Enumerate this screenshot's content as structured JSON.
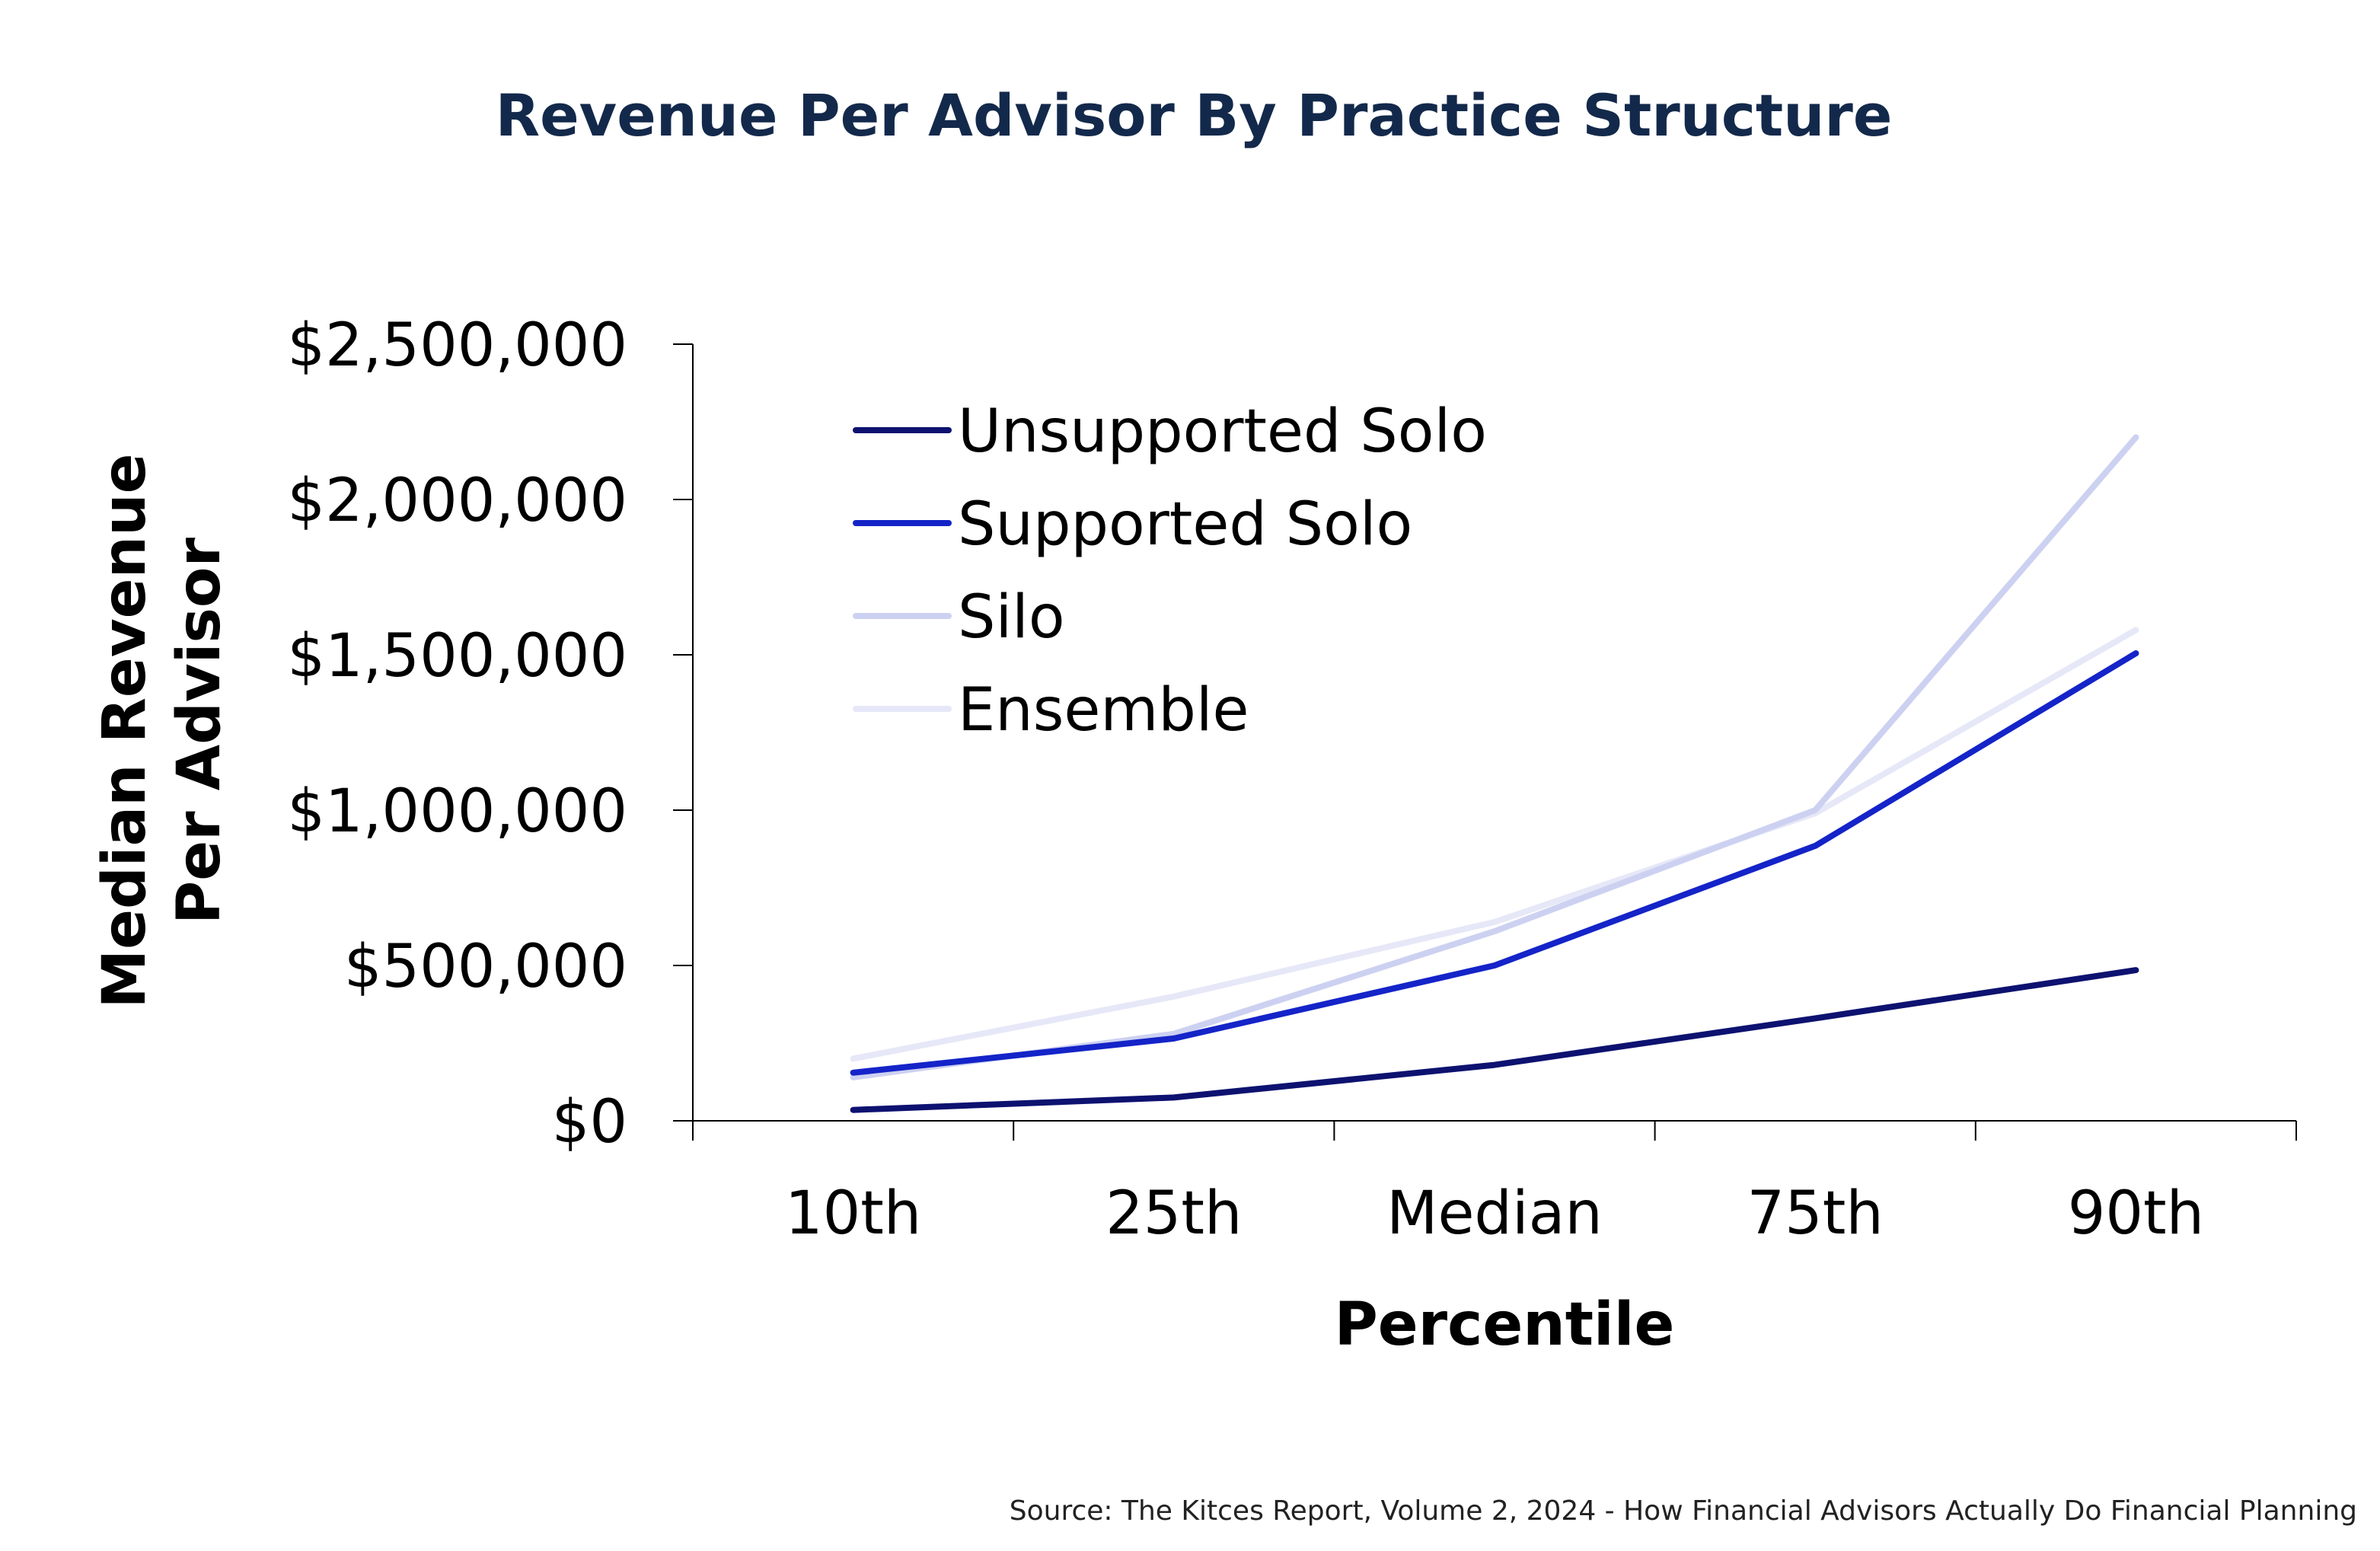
{
  "chart_data": {
    "type": "line",
    "title": "Revenue Per Advisor By Practice Structure",
    "xlabel": "Percentile",
    "ylabel": "Median Revenue Per Advisor",
    "ylabel_lines": [
      "Median Revenue",
      "Per Advisor"
    ],
    "categories": [
      "10th",
      "25th",
      "Median",
      "75th",
      "90th"
    ],
    "ylim": [
      0,
      2500000
    ],
    "yticks": [
      0,
      500000,
      1000000,
      1500000,
      2000000,
      2500000
    ],
    "ytick_labels": [
      "$0",
      "$500,000",
      "$1,000,000",
      "$1,500,000",
      "$2,000,000",
      "$2,500,000"
    ],
    "grid": false,
    "legend_position": "top-left",
    "series": [
      {
        "name": "Unsupported Solo",
        "color": "#0d1270",
        "values": [
          35000,
          75000,
          180000,
          330000,
          485000
        ]
      },
      {
        "name": "Supported Solo",
        "color": "#1424c8",
        "values": [
          155000,
          265000,
          500000,
          885000,
          1505000
        ]
      },
      {
        "name": "Silo",
        "color": "#cdd1f1",
        "values": [
          140000,
          280000,
          610000,
          1000000,
          2200000
        ]
      },
      {
        "name": "Ensemble",
        "color": "#e6e8f8",
        "values": [
          200000,
          400000,
          640000,
          990000,
          1580000
        ]
      }
    ],
    "source": "Source: The Kitces Report, Volume 2, 2024 - How Financial Advisors Actually Do Financial Planning"
  },
  "colors": {
    "title": "#13294b",
    "axis": "#000000"
  }
}
